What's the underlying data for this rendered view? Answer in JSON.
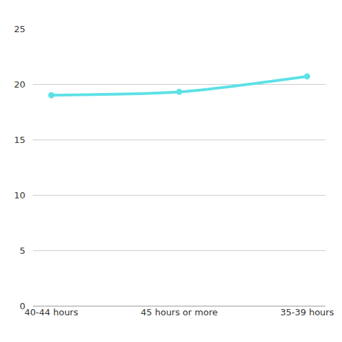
{
  "chart_data": {
    "type": "line",
    "categories": [
      "40-44 hours",
      "45 hours or more",
      "35-39 hours"
    ],
    "values": [
      19.0,
      19.3,
      20.7
    ],
    "color": "#5ce1e6",
    "marker": "circle",
    "line_style": "solid",
    "ylim": [
      0,
      25
    ],
    "yticks": [
      0,
      5,
      10,
      15,
      20,
      25
    ],
    "grid": true
  }
}
